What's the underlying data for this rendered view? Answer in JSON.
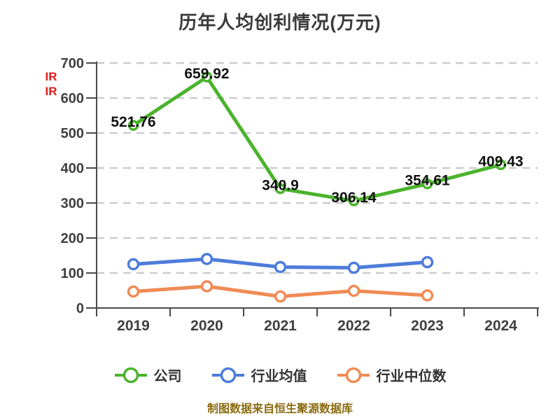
{
  "page": {
    "title": "历年人均创利情况(万元)",
    "watermark_lines": [
      "IR",
      "IR"
    ],
    "caption": "制图数据来自恒生聚源数据库"
  },
  "colors": {
    "company": "#4bb32c",
    "industry_avg": "#4d7cdb",
    "industry_median": "#f08b55",
    "grid": "#cccccc",
    "axis": "#4a4a4a",
    "tick_label": "#3f3f3f",
    "title": "#3a3a3a",
    "data_label": "#111111",
    "caption": "#8a6b10",
    "watermark": "#e11b1b"
  },
  "chart_data": {
    "type": "line",
    "title": "历年人均创利情况(万元)",
    "categories": [
      "2019",
      "2020",
      "2021",
      "2022",
      "2023",
      "2024"
    ],
    "series": [
      {
        "name": "公司",
        "color": "#4bb32c",
        "values": [
          521.76,
          659.92,
          340.9,
          306.14,
          354.61,
          409.43
        ],
        "point_labels": [
          "521.76",
          "659.92",
          "340.9",
          "306.14",
          "354.61",
          "409.43"
        ]
      },
      {
        "name": "行业均值",
        "color": "#4d7cdb",
        "values": [
          125,
          140,
          117,
          115,
          131,
          null
        ],
        "values_estimated": true
      },
      {
        "name": "行业中位数",
        "color": "#f08b55",
        "values": [
          47,
          62,
          33,
          49,
          36,
          null
        ],
        "values_estimated": true
      }
    ],
    "ylim": [
      0,
      700
    ],
    "ytick_step": 100,
    "grid": "horizontal-dashed",
    "legend_position": "bottom",
    "legend": [
      "公司",
      "行业均值",
      "行业中位数"
    ]
  }
}
